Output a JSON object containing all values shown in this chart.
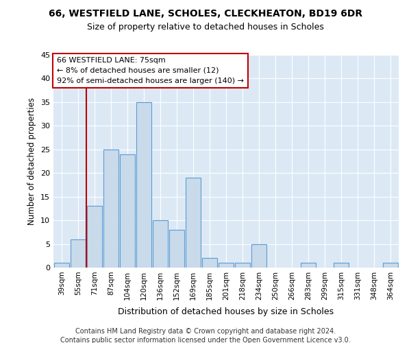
{
  "title1": "66, WESTFIELD LANE, SCHOLES, CLECKHEATON, BD19 6DR",
  "title2": "Size of property relative to detached houses in Scholes",
  "xlabel": "Distribution of detached houses by size in Scholes",
  "ylabel": "Number of detached properties",
  "categories": [
    "39sqm",
    "55sqm",
    "71sqm",
    "87sqm",
    "104sqm",
    "120sqm",
    "136sqm",
    "152sqm",
    "169sqm",
    "185sqm",
    "201sqm",
    "218sqm",
    "234sqm",
    "250sqm",
    "266sqm",
    "283sqm",
    "299sqm",
    "315sqm",
    "331sqm",
    "348sqm",
    "364sqm"
  ],
  "values": [
    1,
    6,
    13,
    25,
    24,
    35,
    10,
    8,
    19,
    2,
    1,
    1,
    5,
    0,
    0,
    1,
    0,
    1,
    0,
    0,
    1
  ],
  "bar_color": "#c9daea",
  "bar_edge_color": "#5b9bd5",
  "vline_color": "#c00000",
  "annotation_line1": "66 WESTFIELD LANE: 75sqm",
  "annotation_line2": "← 8% of detached houses are smaller (12)",
  "annotation_line3": "92% of semi-detached houses are larger (140) →",
  "annotation_box_edge": "#c00000",
  "ylim": [
    0,
    45
  ],
  "yticks": [
    0,
    5,
    10,
    15,
    20,
    25,
    30,
    35,
    40,
    45
  ],
  "footnote1": "Contains HM Land Registry data © Crown copyright and database right 2024.",
  "footnote2": "Contains public sector information licensed under the Open Government Licence v3.0.",
  "plot_bg_color": "#dce9f5",
  "fig_bg_color": "#ffffff",
  "grid_color": "#ffffff"
}
